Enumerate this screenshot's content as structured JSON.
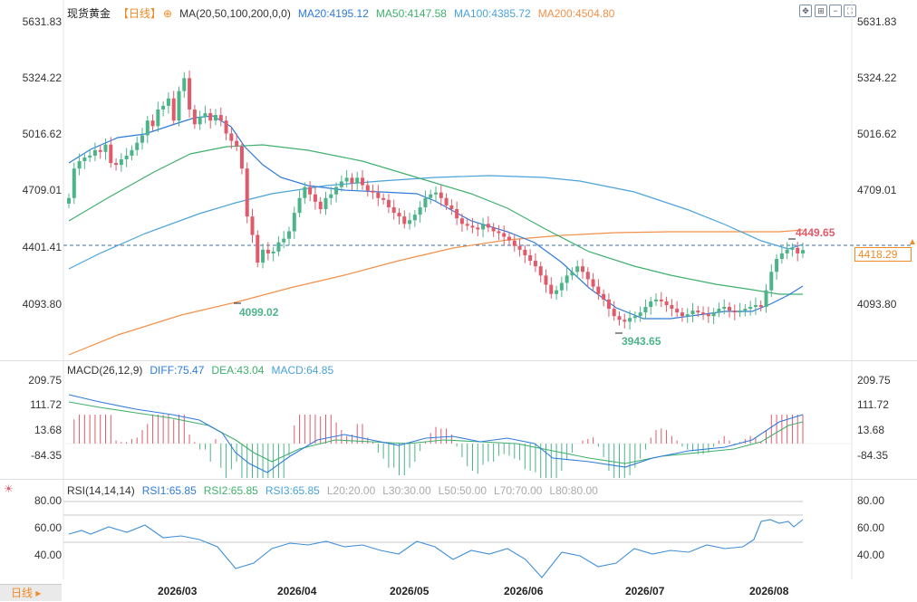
{
  "header": {
    "instrument": "现货黄金",
    "period": "【日线】",
    "ma_title": "MA(20,50,100,200,0,0)",
    "ma20": "MA20:4195.12",
    "ma50": "MA50:4147.58",
    "ma100": "MA100:4385.72",
    "ma200": "MA200:4504.80"
  },
  "toolbar": {
    "icons": [
      "move-icon",
      "zoom-icon",
      "minus-icon",
      "fullscreen-icon"
    ]
  },
  "price_axis": [
    "5631.83",
    "5324.22",
    "5016.62",
    "4709.01",
    "4401.41",
    "4093.80"
  ],
  "current_price": "4418.29",
  "annotations": {
    "high": "4449.65",
    "low1": "4099.02",
    "low2": "3943.65"
  },
  "macd": {
    "title": "MACD(26,12,9)",
    "diff": "DIFF:75.47",
    "dea": "DEA:43.04",
    "macd": "MACD:64.85",
    "axis": [
      "209.75",
      "111.72",
      "13.68",
      "-84.35"
    ]
  },
  "rsi": {
    "title": "RSI(14,14,14)",
    "rsi1": "RSI1:65.85",
    "rsi2": "RSI2:65.85",
    "rsi3": "RSI3:65.85",
    "l20": "L20:20.00",
    "l30": "L30:30.00",
    "l50": "L50:50.00",
    "l70": "L70:70.00",
    "l80": "L80:80.00",
    "axis": [
      "80.00",
      "60.00",
      "40.00"
    ]
  },
  "x_axis": [
    "2026/03",
    "2026/04",
    "2026/05",
    "2026/06",
    "2026/07",
    "2026/08"
  ],
  "period_button": "日线",
  "colors": {
    "up": "#4cb489",
    "down": "#e05a6a",
    "ma20": "#2f7bd9",
    "ma50": "#3fb06d",
    "ma100": "#4aa3d9",
    "ma200": "#f2914a"
  },
  "chart_data": {
    "type": "candlestick",
    "ylim": [
      3850,
      5700
    ],
    "candles_close": [
      4700,
      4860,
      4900,
      4920,
      4930,
      4960,
      4950,
      4990,
      4890,
      4880,
      4910,
      4930,
      4960,
      5000,
      5040,
      5120,
      5090,
      5180,
      5200,
      5240,
      5120,
      5280,
      5350,
      5180,
      5100,
      5140,
      5160,
      5120,
      5150,
      5120,
      5050,
      5010,
      4980,
      4860,
      4600,
      4500,
      4350,
      4420,
      4400,
      4410,
      4460,
      4480,
      4520,
      4620,
      4700,
      4760,
      4720,
      4680,
      4640,
      4700,
      4720,
      4760,
      4790,
      4810,
      4780,
      4810,
      4770,
      4740,
      4730,
      4700,
      4690,
      4650,
      4620,
      4600,
      4560,
      4580,
      4610,
      4650,
      4700,
      4720,
      4730,
      4700,
      4660,
      4640,
      4590,
      4560,
      4550,
      4540,
      4530,
      4560,
      4540,
      4520,
      4510,
      4490,
      4470,
      4440,
      4420,
      4390,
      4360,
      4330,
      4280,
      4230,
      4180,
      4200,
      4240,
      4280,
      4300,
      4330,
      4300,
      4260,
      4220,
      4180,
      4150,
      4100,
      4060,
      4040,
      4030,
      4050,
      4060,
      4080,
      4110,
      4140,
      4150,
      4140,
      4120,
      4100,
      4080,
      4060,
      4070,
      4090,
      4080,
      4070,
      4060,
      4080,
      4100,
      4110,
      4090,
      4080,
      4090,
      4100,
      4110,
      4120,
      4110,
      4200,
      4300,
      4370,
      4400,
      4420,
      4430,
      4400,
      4418
    ]
  }
}
